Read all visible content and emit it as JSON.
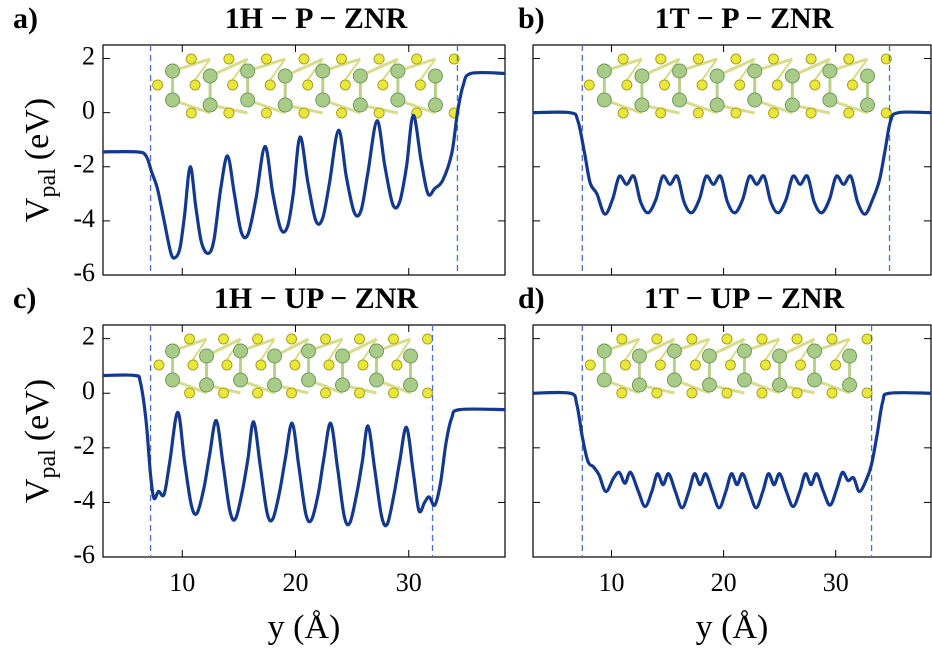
{
  "chart_data": [
    {
      "type": "line",
      "panel_label": "a)",
      "title": "1H − P − ZNR",
      "ylabel": "V",
      "ylabel_subscript": "pal",
      "ylabel_unit": "(eV)",
      "color": "#13398f",
      "xlim": [
        3,
        38.5
      ],
      "ylim": [
        -6,
        2.5
      ],
      "xticks": [
        10,
        20,
        30
      ],
      "yticks": [
        -6,
        -4,
        -2,
        0,
        2
      ],
      "xtick_labels": false,
      "ytick_labels": true,
      "vlines": [
        7.2,
        34.3
      ],
      "vline_color": "#4a6fd0",
      "x": [
        3,
        6,
        6.8,
        7.3,
        7.8,
        8.4,
        9.0,
        9.4,
        9.8,
        10.2,
        10.7,
        11.2,
        11.7,
        12.3,
        12.8,
        13.4,
        14.0,
        14.6,
        15.2,
        15.8,
        16.5,
        17.3,
        18.0,
        18.7,
        19.3,
        19.8,
        20.4,
        21.1,
        21.8,
        22.4,
        23.0,
        23.8,
        24.5,
        25.2,
        25.8,
        26.4,
        27.2,
        27.9,
        28.6,
        29.2,
        29.8,
        30.4,
        31.1,
        31.7,
        32.3,
        33.0,
        33.8,
        34.3,
        34.8,
        35.5,
        38.5
      ],
      "values": [
        -1.45,
        -1.45,
        -1.6,
        -2.2,
        -2.8,
        -4.0,
        -5.2,
        -5.35,
        -5.0,
        -3.8,
        -2.0,
        -3.5,
        -4.8,
        -5.2,
        -4.7,
        -2.8,
        -1.6,
        -3.0,
        -4.4,
        -4.5,
        -3.2,
        -1.25,
        -3.0,
        -4.3,
        -4.2,
        -3.0,
        -0.9,
        -2.6,
        -4.0,
        -3.9,
        -2.6,
        -0.65,
        -2.4,
        -3.7,
        -3.6,
        -2.2,
        -0.3,
        -2.0,
        -3.4,
        -3.3,
        -2.0,
        -0.1,
        -1.8,
        -3.0,
        -2.8,
        -2.5,
        -1.5,
        0.0,
        1.0,
        1.45,
        1.45
      ]
    },
    {
      "type": "line",
      "panel_label": "b)",
      "title": "1T − P − ZNR",
      "color": "#13398f",
      "xlim": [
        3,
        38.5
      ],
      "ylim": [
        -6,
        2.5
      ],
      "xticks": [
        10,
        20,
        30
      ],
      "yticks": [
        -6,
        -4,
        -2,
        0,
        2
      ],
      "xtick_labels": false,
      "ytick_labels": false,
      "vlines": [
        7.4,
        34.8
      ],
      "vline_color": "#4a6fd0",
      "x": [
        3,
        6.3,
        7.0,
        7.6,
        8.1,
        8.7,
        9.4,
        10.1,
        10.7,
        11.35,
        12.0,
        12.6,
        13.27,
        13.97,
        14.57,
        15.22,
        15.87,
        16.47,
        17.14,
        17.84,
        18.44,
        19.09,
        19.74,
        20.34,
        21.01,
        21.71,
        22.31,
        22.96,
        23.61,
        24.21,
        24.88,
        25.58,
        26.18,
        26.83,
        27.48,
        28.08,
        28.75,
        29.45,
        30.05,
        30.7,
        31.35,
        31.95,
        32.62,
        33.3,
        33.9,
        34.4,
        34.9,
        35.6,
        38.5
      ],
      "values": [
        0,
        0,
        -0.3,
        -1.5,
        -2.6,
        -3.0,
        -3.75,
        -3.2,
        -2.35,
        -2.65,
        -2.35,
        -3.3,
        -3.7,
        -3.2,
        -2.35,
        -2.65,
        -2.35,
        -3.3,
        -3.7,
        -3.2,
        -2.35,
        -2.65,
        -2.35,
        -3.3,
        -3.7,
        -3.2,
        -2.35,
        -2.65,
        -2.35,
        -3.3,
        -3.7,
        -3.2,
        -2.35,
        -2.65,
        -2.35,
        -3.3,
        -3.7,
        -3.2,
        -2.35,
        -2.65,
        -2.35,
        -3.3,
        -3.75,
        -3.2,
        -2.5,
        -1.4,
        -0.3,
        0,
        0
      ]
    },
    {
      "type": "line",
      "panel_label": "c)",
      "title": "1H − UP − ZNR",
      "ylabel": "V",
      "ylabel_subscript": "pal",
      "ylabel_unit": "(eV)",
      "xlabel": "y (Å)",
      "color": "#13398f",
      "xlim": [
        3,
        38.5
      ],
      "ylim": [
        -6,
        2.5
      ],
      "xticks": [
        10,
        20,
        30
      ],
      "yticks": [
        -6,
        -4,
        -2,
        0,
        2
      ],
      "xtick_labels": true,
      "ytick_labels": true,
      "vlines": [
        7.2,
        32.1
      ],
      "vline_color": "#4a6fd0",
      "x": [
        3,
        5.8,
        6.3,
        6.8,
        7.2,
        7.5,
        7.9,
        8.4,
        8.9,
        9.6,
        10.2,
        10.8,
        11.3,
        11.9,
        12.4,
        13.0,
        13.6,
        14.2,
        14.7,
        15.3,
        15.8,
        16.3,
        16.9,
        17.5,
        18.0,
        18.6,
        19.1,
        19.7,
        20.3,
        20.9,
        21.4,
        22.0,
        22.5,
        23.1,
        23.7,
        24.3,
        24.8,
        25.4,
        25.9,
        26.4,
        27.0,
        27.6,
        28.1,
        28.7,
        29.2,
        29.8,
        30.4,
        30.9,
        31.4,
        31.8,
        32.3,
        32.8,
        33.3,
        33.8,
        34.5,
        38.5
      ],
      "values": [
        0.65,
        0.65,
        0.4,
        -1.0,
        -3.0,
        -3.85,
        -3.6,
        -3.7,
        -2.5,
        -0.7,
        -2.5,
        -4.1,
        -4.4,
        -3.5,
        -2.3,
        -1.0,
        -2.6,
        -4.3,
        -4.6,
        -3.6,
        -2.4,
        -1.05,
        -2.7,
        -4.4,
        -4.6,
        -3.6,
        -2.4,
        -1.1,
        -2.7,
        -4.4,
        -4.65,
        -3.7,
        -2.4,
        -1.1,
        -2.7,
        -4.5,
        -4.75,
        -3.7,
        -2.5,
        -1.2,
        -2.8,
        -4.5,
        -4.8,
        -3.7,
        -2.5,
        -1.25,
        -2.9,
        -4.3,
        -4.0,
        -3.8,
        -4.1,
        -3.3,
        -1.8,
        -0.9,
        -0.6,
        -0.6
      ]
    },
    {
      "type": "line",
      "panel_label": "d)",
      "title": "1T − UP − ZNR",
      "xlabel": "y (Å)",
      "color": "#13398f",
      "xlim": [
        3,
        38.5
      ],
      "ylim": [
        -6,
        2.5
      ],
      "xticks": [
        10,
        20,
        30
      ],
      "yticks": [
        -6,
        -4,
        -2,
        0,
        2
      ],
      "xtick_labels": true,
      "ytick_labels": false,
      "vlines": [
        7.4,
        33.2
      ],
      "vline_color": "#4a6fd0",
      "x": [
        3,
        6.3,
        6.9,
        7.4,
        7.9,
        8.4,
        8.9,
        9.5,
        10.2,
        10.7,
        11.2,
        11.7,
        12.4,
        13.0,
        13.6,
        14.1,
        14.6,
        15.1,
        15.7,
        16.3,
        16.9,
        17.4,
        17.9,
        18.4,
        19.0,
        19.6,
        20.2,
        20.7,
        21.2,
        21.7,
        22.3,
        22.9,
        23.5,
        24.0,
        24.5,
        25.0,
        25.6,
        26.2,
        26.8,
        27.3,
        27.8,
        28.3,
        28.9,
        29.5,
        30.1,
        30.6,
        31.1,
        31.6,
        32.1,
        32.7,
        33.2,
        33.7,
        34.2,
        34.8,
        38.5
      ],
      "values": [
        0,
        0,
        -0.4,
        -1.6,
        -2.5,
        -2.7,
        -3.0,
        -3.6,
        -3.1,
        -2.9,
        -3.3,
        -2.9,
        -3.6,
        -4.15,
        -3.6,
        -2.95,
        -3.35,
        -2.95,
        -3.6,
        -4.2,
        -3.6,
        -2.95,
        -3.35,
        -2.95,
        -3.6,
        -4.2,
        -3.6,
        -2.95,
        -3.35,
        -2.95,
        -3.6,
        -4.2,
        -3.6,
        -2.95,
        -3.35,
        -2.95,
        -3.6,
        -4.15,
        -3.6,
        -2.95,
        -3.35,
        -2.95,
        -3.6,
        -4.1,
        -3.5,
        -2.9,
        -3.2,
        -3.1,
        -3.6,
        -3.2,
        -2.6,
        -1.5,
        -0.3,
        0,
        0
      ]
    }
  ]
}
